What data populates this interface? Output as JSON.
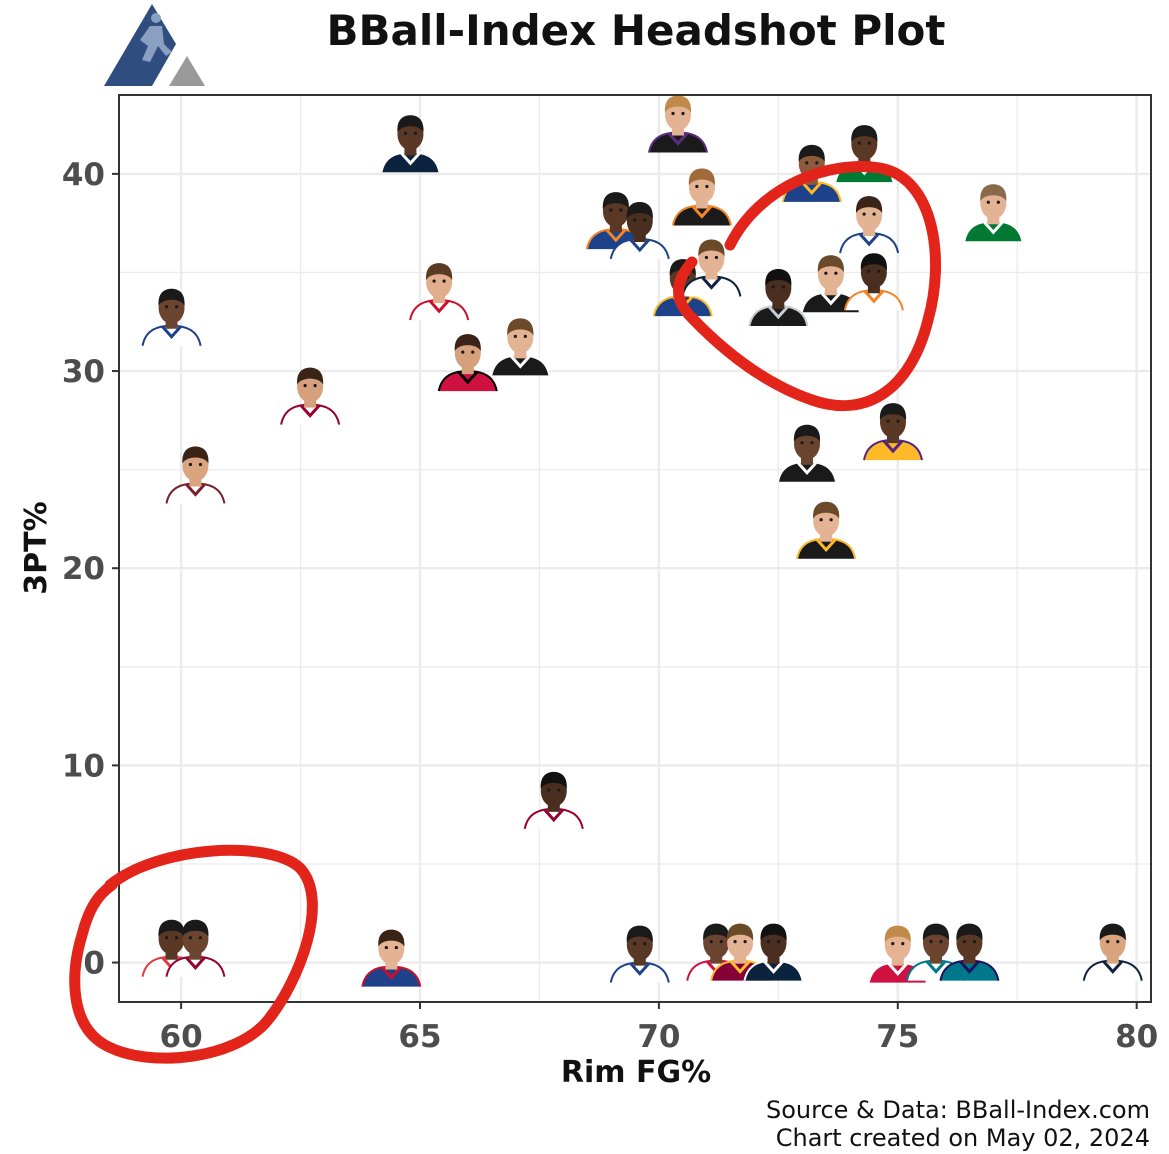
{
  "chart_data": {
    "type": "scatter",
    "title": "BBall-Index Headshot Plot",
    "xlabel": "Rim FG%",
    "ylabel": "3PT%",
    "xlim": [
      58.7,
      80.3
    ],
    "ylim": [
      -2,
      44
    ],
    "x_ticks": [
      60,
      65,
      70,
      75,
      80
    ],
    "y_ticks": [
      0,
      10,
      20,
      30,
      40
    ],
    "x_tick_labels": [
      "60",
      "65",
      "70",
      "75",
      "80"
    ],
    "y_tick_labels": [
      "0",
      "10",
      "20",
      "30",
      "40"
    ],
    "grid": true,
    "caption_lines": [
      "Source & Data: BBall-Index.com",
      "Chart created on May 02, 2024"
    ],
    "points": [
      {
        "x": 59.8,
        "y": 32.5,
        "jersey": "#ffffff",
        "trim": "#1d428a",
        "skin": "#6b4430",
        "hair": "#1a1a1a"
      },
      {
        "x": 60.3,
        "y": 24.5,
        "jersey": "#ffffff",
        "trim": "#7a1f2b",
        "skin": "#d9a47e",
        "hair": "#3a2418"
      },
      {
        "x": 62.7,
        "y": 28.5,
        "jersey": "#ffffff",
        "trim": "#98002e",
        "skin": "#d6a07c",
        "hair": "#3a2418"
      },
      {
        "x": 64.8,
        "y": 41.3,
        "jersey": "#0c2340",
        "trim": "#ffffff",
        "skin": "#5a3826",
        "hair": "#1a1a1a"
      },
      {
        "x": 65.4,
        "y": 33.8,
        "jersey": "#ffffff",
        "trim": "#c8102e",
        "skin": "#e0ae8c",
        "hair": "#5a3a22"
      },
      {
        "x": 66.0,
        "y": 30.2,
        "jersey": "#ce1141",
        "trim": "#000000",
        "skin": "#d6a07c",
        "hair": "#3a2418"
      },
      {
        "x": 67.1,
        "y": 31.0,
        "jersey": "#1a1a1a",
        "trim": "#ffffff",
        "skin": "#e3b394",
        "hair": "#6b4a2a"
      },
      {
        "x": 67.8,
        "y": 8.0,
        "jersey": "#ffffff",
        "trim": "#98002e",
        "skin": "#4a2e20",
        "hair": "#111111"
      },
      {
        "x": 69.1,
        "y": 37.4,
        "jersey": "#1d428a",
        "trim": "#f58426",
        "skin": "#5a3826",
        "hair": "#1a1a1a"
      },
      {
        "x": 69.6,
        "y": 36.9,
        "jersey": "#ffffff",
        "trim": "#1d428a",
        "skin": "#4a2e20",
        "hair": "#1a1a1a"
      },
      {
        "x": 70.4,
        "y": 42.3,
        "jersey": "#1a1a1a",
        "trim": "#5a2d81",
        "skin": "#e3b394",
        "hair": "#c28a4a"
      },
      {
        "x": 70.9,
        "y": 38.6,
        "jersey": "#1a1a1a",
        "trim": "#f58426",
        "skin": "#e3b394",
        "hair": "#a06a3a"
      },
      {
        "x": 70.5,
        "y": 34.0,
        "jersey": "#1d428a",
        "trim": "#fdb927",
        "skin": "#5a3826",
        "hair": "#1a1a1a"
      },
      {
        "x": 71.1,
        "y": 35.0,
        "jersey": "#ffffff",
        "trim": "#0e2240",
        "skin": "#e3b394",
        "hair": "#6b4a2a"
      },
      {
        "x": 72.5,
        "y": 33.5,
        "jersey": "#1a1a1a",
        "trim": "#c4ced4",
        "skin": "#4a2e20",
        "hair": "#111111"
      },
      {
        "x": 73.2,
        "y": 39.8,
        "jersey": "#1d428a",
        "trim": "#fdb927",
        "skin": "#8d5a3c",
        "hair": "#1a1a1a"
      },
      {
        "x": 73.6,
        "y": 34.2,
        "jersey": "#1a1a1a",
        "trim": "#ffffff",
        "skin": "#e3b394",
        "hair": "#6b4a2a"
      },
      {
        "x": 74.3,
        "y": 40.8,
        "jersey": "#007a33",
        "trim": "#ffffff",
        "skin": "#5a3826",
        "hair": "#1a1a1a"
      },
      {
        "x": 74.4,
        "y": 37.2,
        "jersey": "#ffffff",
        "trim": "#1d428a",
        "skin": "#e3b394",
        "hair": "#3a2418"
      },
      {
        "x": 74.5,
        "y": 34.3,
        "jersey": "#ffffff",
        "trim": "#f58426",
        "skin": "#4a2e20",
        "hair": "#111111"
      },
      {
        "x": 77.0,
        "y": 37.8,
        "jersey": "#007a33",
        "trim": "#ffffff",
        "skin": "#e3b394",
        "hair": "#8a6a4a"
      },
      {
        "x": 73.1,
        "y": 25.6,
        "jersey": "#1a1a1a",
        "trim": "#ffffff",
        "skin": "#6b4430",
        "hair": "#1a1a1a"
      },
      {
        "x": 74.9,
        "y": 26.7,
        "jersey": "#fdb927",
        "trim": "#552583",
        "skin": "#5a3826",
        "hair": "#1a1a1a"
      },
      {
        "x": 73.5,
        "y": 21.7,
        "jersey": "#1a1a1a",
        "trim": "#fdb927",
        "skin": "#e3b394",
        "hair": "#6b4a2a"
      },
      {
        "x": 59.8,
        "y": 0.5,
        "jersey": "#ffffff",
        "trim": "#e03a3e",
        "skin": "#5a3826",
        "hair": "#1a1a1a"
      },
      {
        "x": 60.3,
        "y": 0.5,
        "jersey": "#ffffff",
        "trim": "#98002e",
        "skin": "#6b4430",
        "hair": "#1a1a1a"
      },
      {
        "x": 64.4,
        "y": 0.0,
        "jersey": "#1d428a",
        "trim": "#c8102e",
        "skin": "#e3b394",
        "hair": "#3a2418"
      },
      {
        "x": 69.6,
        "y": 0.2,
        "jersey": "#ffffff",
        "trim": "#1d428a",
        "skin": "#5a3826",
        "hair": "#1a1a1a"
      },
      {
        "x": 71.2,
        "y": 0.3,
        "jersey": "#ffffff",
        "trim": "#ce1141",
        "skin": "#6b4430",
        "hair": "#1a1a1a"
      },
      {
        "x": 71.7,
        "y": 0.3,
        "jersey": "#860038",
        "trim": "#fdbb30",
        "skin": "#e3b394",
        "hair": "#6b4a2a"
      },
      {
        "x": 72.4,
        "y": 0.3,
        "jersey": "#0c2340",
        "trim": "#ffffff",
        "skin": "#4a2e20",
        "hair": "#111111"
      },
      {
        "x": 75.0,
        "y": 0.2,
        "jersey": "#ce1141",
        "trim": "#ffffff",
        "skin": "#e3b394",
        "hair": "#c28a4a"
      },
      {
        "x": 75.8,
        "y": 0.3,
        "jersey": "#ffffff",
        "trim": "#00788c",
        "skin": "#6b4430",
        "hair": "#1a1a1a"
      },
      {
        "x": 76.5,
        "y": 0.3,
        "jersey": "#00788c",
        "trim": "#1d1160",
        "skin": "#5a3826",
        "hair": "#1a1a1a"
      },
      {
        "x": 79.5,
        "y": 0.3,
        "jersey": "#ffffff",
        "trim": "#0e2240",
        "skin": "#d9a47e",
        "hair": "#1a1a1a"
      }
    ],
    "annotations": [
      {
        "type": "hand-drawn-circle",
        "color": "#e3241b",
        "around": "upper-right cluster"
      },
      {
        "type": "hand-drawn-circle",
        "color": "#e3241b",
        "around": "lower-left pair"
      }
    ]
  },
  "colors": {
    "panel_border": "#333333",
    "grid": "#ebebeb",
    "annotation": "#e3241b",
    "logo_blue": "#2f4e7f",
    "logo_gray": "#9a9a9a"
  }
}
